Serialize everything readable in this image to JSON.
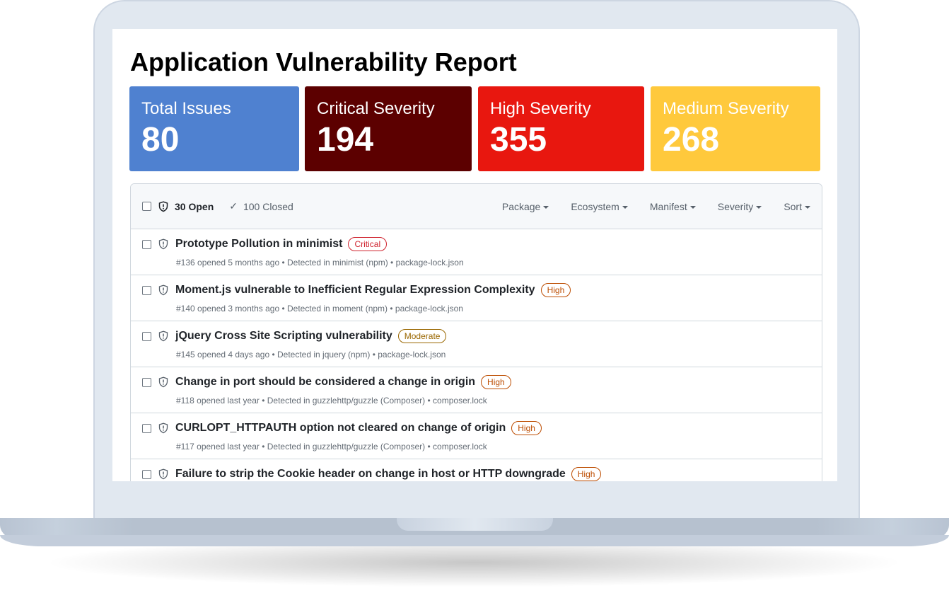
{
  "title": "Application Vulnerability Report",
  "cards": [
    {
      "label": "Total Issues",
      "value": "80",
      "color": "#4f81d0"
    },
    {
      "label": "Critical Severity",
      "value": "194",
      "color": "#5c0000"
    },
    {
      "label": "High Severity",
      "value": "355",
      "color": "#e8170f"
    },
    {
      "label": "Medium Severity",
      "value": "268",
      "color": "#ffc93c"
    }
  ],
  "toolbar": {
    "open": "30 Open",
    "closed": "100 Closed",
    "filters": [
      "Package",
      "Ecosystem",
      "Manifest",
      "Severity",
      "Sort"
    ]
  },
  "severity_colors": {
    "Critical": "#cf222e",
    "High": "#bc4c00",
    "Moderate": "#9a6700"
  },
  "alerts": [
    {
      "title": "Prototype Pollution in minimist",
      "severity": "Critical",
      "meta": "#136 opened 5 months ago • Detected in minimist (npm) • package-lock.json"
    },
    {
      "title": "Moment.js vulnerable to Inefficient Regular Expression Complexity",
      "severity": "High",
      "meta": "#140 opened 3 months ago • Detected in moment (npm) • package-lock.json"
    },
    {
      "title": "jQuery Cross Site Scripting vulnerability",
      "severity": "Moderate",
      "meta": "#145 opened 4 days ago • Detected in jquery (npm) • package-lock.json"
    },
    {
      "title": "Change in port should be considered a change in origin",
      "severity": "High",
      "meta": "#118 opened last year • Detected in guzzlehttp/guzzle (Composer) • composer.lock"
    },
    {
      "title": "CURLOPT_HTTPAUTH option not cleared on change of origin",
      "severity": "High",
      "meta": "#117 opened last year • Detected in guzzlehttp/guzzle (Composer) • composer.lock"
    },
    {
      "title": "Failure to strip the Cookie header on change in host or HTTP downgrade",
      "severity": "High",
      "meta": ""
    }
  ]
}
